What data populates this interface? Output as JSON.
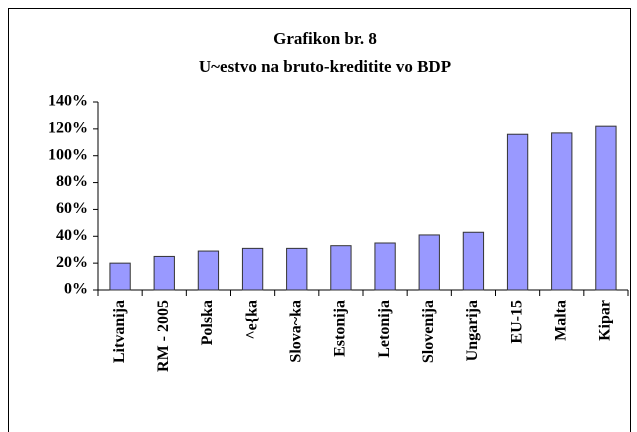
{
  "chart_data": {
    "type": "bar",
    "title": [
      "Grafikon br. 8",
      "U~estvo na bruto-kreditite vo BDP"
    ],
    "categories": [
      "Litvanija",
      "RM - 2005",
      "Polska",
      "^e{ka",
      "Slova~ka",
      "Estonija",
      "Letonija",
      "Slovenija",
      "Ungarija",
      "EU-15",
      "Malta",
      "Kipar"
    ],
    "values": [
      20,
      25,
      29,
      31,
      31,
      33,
      35,
      41,
      43,
      116,
      117,
      122
    ],
    "color": "#9999ff",
    "ylim": [
      0,
      140
    ],
    "yticks": [
      {
        "value": 0,
        "label": "0%"
      },
      {
        "value": 20,
        "label": "20%"
      },
      {
        "value": 40,
        "label": "40%"
      },
      {
        "value": 60,
        "label": "60%"
      },
      {
        "value": 80,
        "label": "80%"
      },
      {
        "value": 100,
        "label": "100%"
      },
      {
        "value": 120,
        "label": "120%"
      },
      {
        "value": 140,
        "label": "140%"
      }
    ],
    "grid": false
  }
}
